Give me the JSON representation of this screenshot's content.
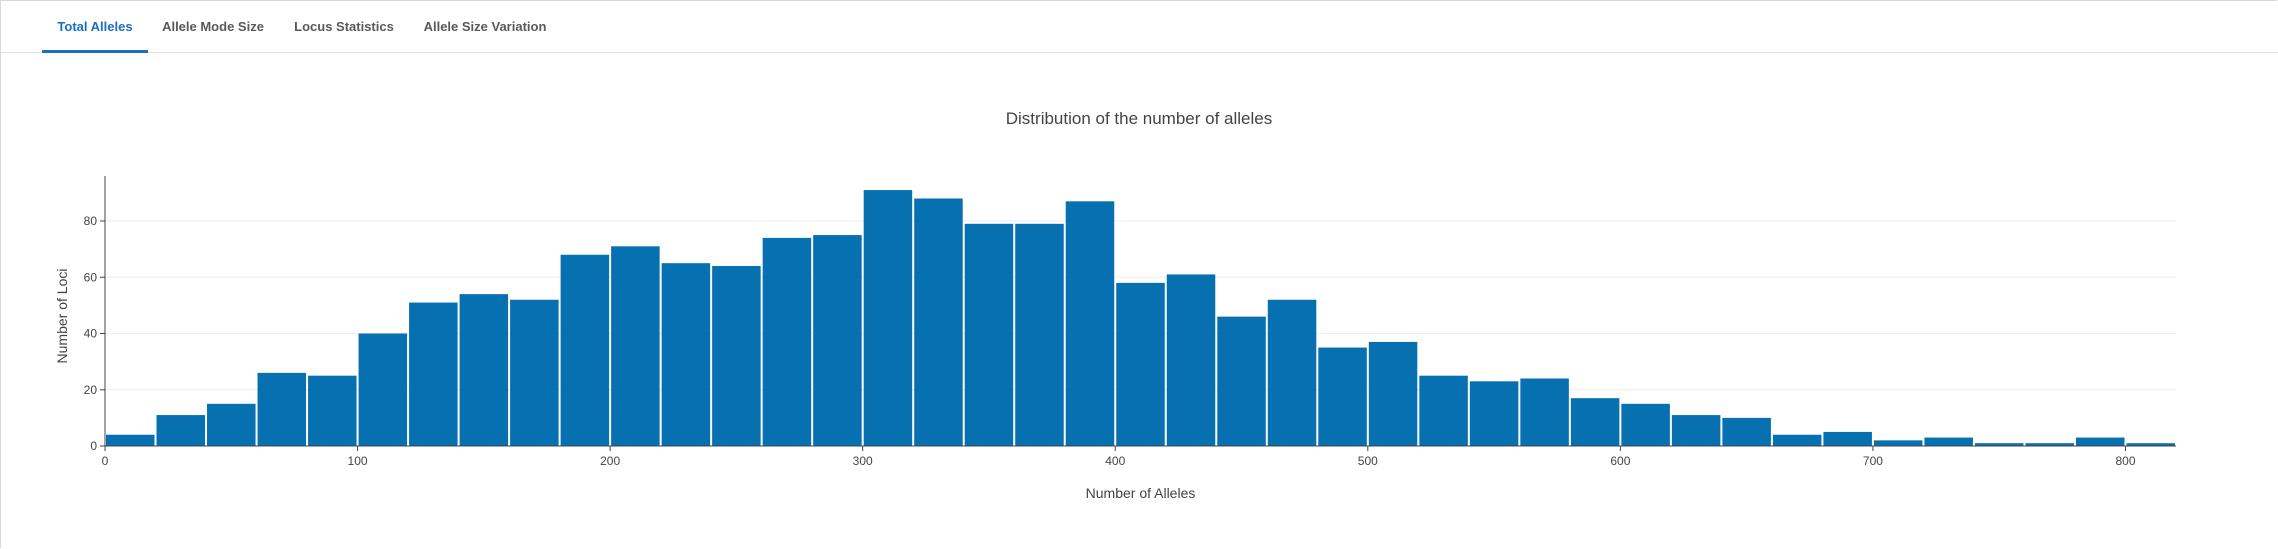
{
  "tabs": [
    {
      "label": "Total Alleles",
      "active": true
    },
    {
      "label": "Allele Mode Size",
      "active": false
    },
    {
      "label": "Locus Statistics",
      "active": false
    },
    {
      "label": "Allele Size Variation",
      "active": false
    }
  ],
  "colors": {
    "bar": "#0770b1",
    "accent": "#1a6fc2",
    "grid": "#eeeeee"
  },
  "chart_data": {
    "type": "bar",
    "title": "Distribution of the number of alleles",
    "xlabel": "Number of Alleles",
    "ylabel": "Number of Loci",
    "bin_width": 20,
    "bin_starts": [
      0,
      20,
      40,
      60,
      80,
      100,
      120,
      140,
      160,
      180,
      200,
      220,
      240,
      260,
      280,
      300,
      320,
      340,
      360,
      380,
      400,
      420,
      440,
      460,
      480,
      500,
      520,
      540,
      560,
      580,
      600,
      620,
      640,
      660,
      680,
      700,
      720,
      740,
      760,
      780,
      800
    ],
    "values": [
      4,
      11,
      15,
      26,
      25,
      40,
      51,
      54,
      52,
      68,
      71,
      65,
      64,
      74,
      75,
      91,
      88,
      79,
      79,
      87,
      58,
      61,
      46,
      52,
      35,
      37,
      25,
      23,
      24,
      17,
      15,
      11,
      10,
      4,
      5,
      2,
      3,
      1,
      1,
      3,
      1
    ],
    "xlim": [
      0,
      820
    ],
    "ylim": [
      0,
      96
    ],
    "xticks": [
      0,
      100,
      200,
      300,
      400,
      500,
      600,
      700,
      800
    ],
    "yticks": [
      0,
      20,
      40,
      60,
      80
    ],
    "grid": true,
    "legend": "none"
  }
}
